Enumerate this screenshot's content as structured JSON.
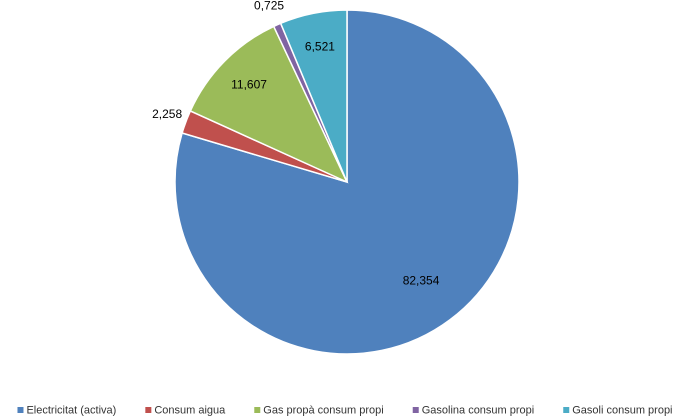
{
  "chart_data": {
    "type": "pie",
    "categories": [
      "Electricitat (activa)",
      "Consum aigua",
      "Gas propà consum propi",
      "Gasolina consum propi",
      "Gasoli consum propi"
    ],
    "values": [
      82.354,
      2.258,
      11.607,
      0.725,
      6.521
    ],
    "value_labels": [
      "82,354",
      "2,258",
      "11,607",
      "0,725",
      "6,521"
    ],
    "colors": [
      "#4f81bd",
      "#c0504d",
      "#9bbb59",
      "#8064a2",
      "#4bacc6"
    ],
    "legend": "bottom"
  }
}
